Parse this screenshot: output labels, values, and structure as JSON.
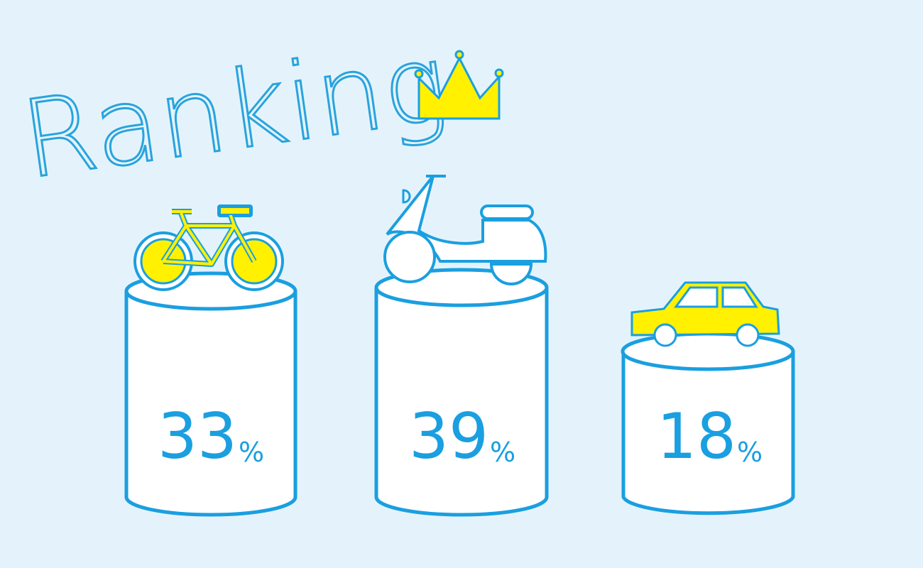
{
  "title": "Ranking",
  "items": [
    {
      "value": 33,
      "unit": "%"
    },
    {
      "value": 39,
      "unit": "%"
    },
    {
      "value": 18,
      "unit": "%"
    }
  ]
}
